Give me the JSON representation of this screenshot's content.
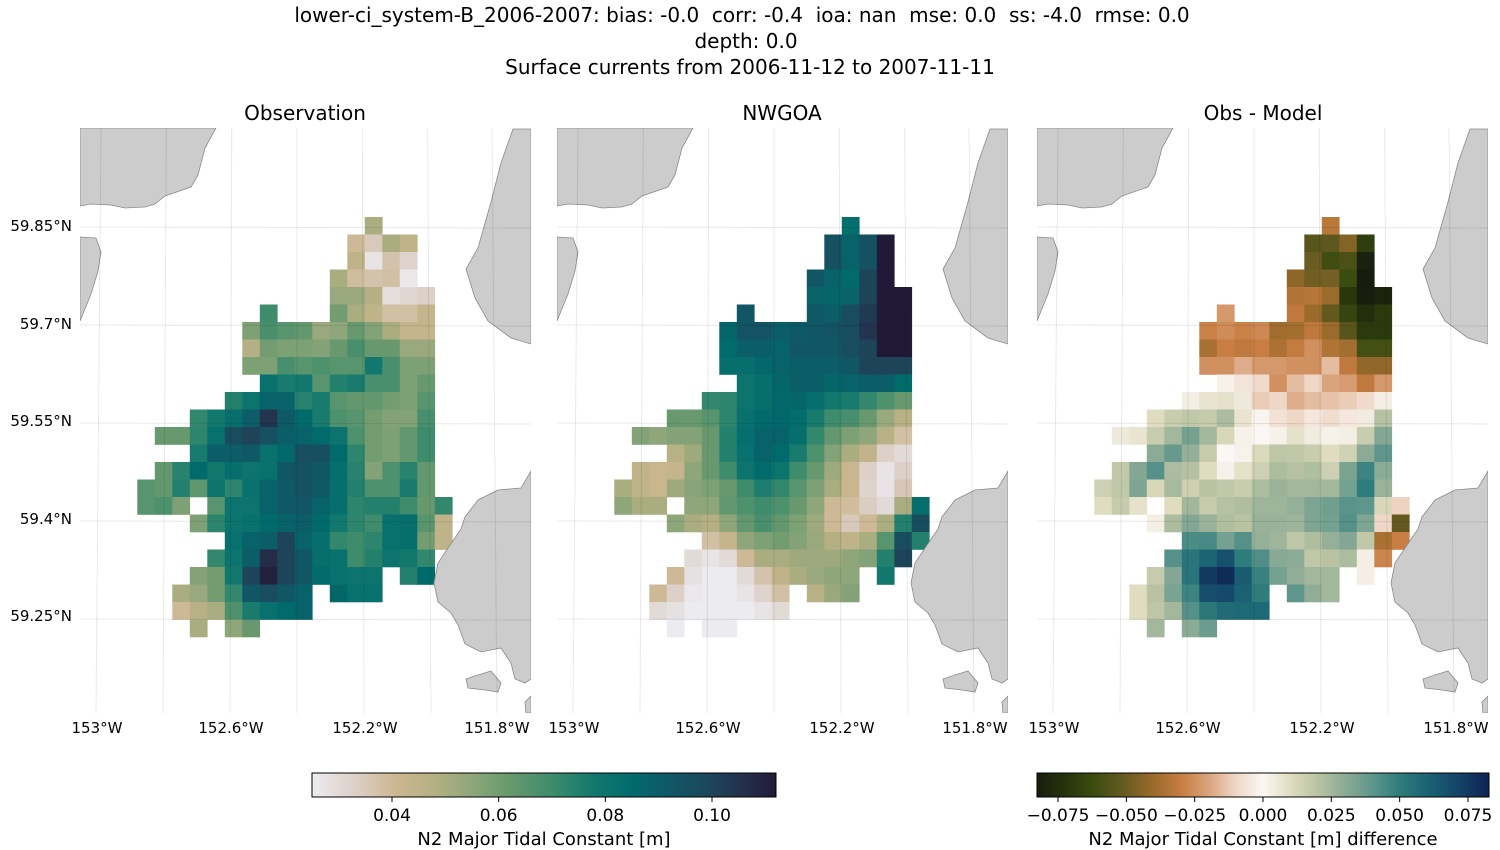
{
  "figure": {
    "suptitle_lines": [
      "lower-ci_system-B_2006-2007: bias: -0.0  corr: -0.4  ioa: nan  mse: 0.0  ss: -4.0  rmse: 0.0",
      "depth: 0.0",
      "Surface currents from 2006-11-12 to 2007-11-11"
    ],
    "land_color": "#cccccc"
  },
  "chart_data": {
    "type": "heatmap",
    "panels": [
      {
        "title": "Observation",
        "field": "obs",
        "colorbar": "values"
      },
      {
        "title": "NWGOA",
        "field": "model",
        "colorbar": "values"
      },
      {
        "title": "Obs - Model",
        "field": "diff",
        "colorbar": "difference"
      }
    ],
    "lat_ticks": [
      "59.85°N",
      "59.7°N",
      "59.55°N",
      "59.4°N",
      "59.25°N"
    ],
    "lon_ticks": [
      "153°W",
      "152.6°W",
      "152.2°W",
      "151.8°W"
    ],
    "grid": true,
    "colorbars": {
      "values": {
        "label": "N2 Major Tidal Constant [m]",
        "range": [
          0.025,
          0.112
        ],
        "ticks": [
          "0.04",
          "0.06",
          "0.08",
          "0.10"
        ],
        "tick_values": [
          0.04,
          0.06,
          0.08,
          0.1
        ],
        "colormap": [
          [
            0.025,
            "#ecebf0"
          ],
          [
            0.033,
            "#dcd0c8"
          ],
          [
            0.041,
            "#ccb690"
          ],
          [
            0.048,
            "#b4b083"
          ],
          [
            0.055,
            "#8ea67a"
          ],
          [
            0.062,
            "#68996e"
          ],
          [
            0.07,
            "#3e8c6c"
          ],
          [
            0.078,
            "#12786e"
          ],
          [
            0.085,
            "#016b6c"
          ],
          [
            0.092,
            "#0f5866"
          ],
          [
            0.1,
            "#1e4459"
          ],
          [
            0.106,
            "#252f4c"
          ],
          [
            0.112,
            "#211a36"
          ]
        ]
      },
      "difference": {
        "label": "N2 Major Tidal Constant [m] difference",
        "range": [
          -0.0827,
          0.0827
        ],
        "ticks": [
          "−0.075",
          "−0.050",
          "−0.025",
          "0.000",
          "0.025",
          "0.050",
          "0.075"
        ],
        "tick_values": [
          -0.075,
          -0.05,
          -0.025,
          0,
          0.025,
          0.05,
          0.075
        ],
        "colormap": [
          [
            -0.083,
            "#171c0e"
          ],
          [
            -0.072,
            "#27350c"
          ],
          [
            -0.062,
            "#3b4c10"
          ],
          [
            -0.05,
            "#6b5c22"
          ],
          [
            -0.04,
            "#9a6b2c"
          ],
          [
            -0.03,
            "#c87d42"
          ],
          [
            -0.02,
            "#d9a37c"
          ],
          [
            -0.01,
            "#eed7c6"
          ],
          [
            0,
            "#fbf7f5"
          ],
          [
            0.01,
            "#e0dcc0"
          ],
          [
            0.02,
            "#b9c3a3"
          ],
          [
            0.03,
            "#8cab96"
          ],
          [
            0.04,
            "#5e968b"
          ],
          [
            0.05,
            "#2f7c7c"
          ],
          [
            0.06,
            "#1a6474"
          ],
          [
            0.07,
            "#16486a"
          ],
          [
            0.083,
            "#0f2254"
          ]
        ]
      }
    },
    "obs": [
      [
        null,
        null,
        null,
        null,
        null,
        null,
        null,
        null,
        null,
        null,
        null,
        null,
        null,
        0.05,
        null,
        null,
        null,
        null
      ],
      [
        null,
        null,
        null,
        null,
        null,
        null,
        null,
        null,
        null,
        null,
        null,
        null,
        0.04,
        0.035,
        0.05,
        0.045,
        null,
        null
      ],
      [
        null,
        null,
        null,
        null,
        null,
        null,
        null,
        null,
        null,
        null,
        null,
        null,
        0.045,
        0.027,
        0.037,
        0.032,
        null,
        null
      ],
      [
        null,
        null,
        null,
        null,
        null,
        null,
        null,
        null,
        null,
        null,
        null,
        0.05,
        0.039,
        0.037,
        0.038,
        0.026,
        null,
        null
      ],
      [
        null,
        null,
        null,
        null,
        null,
        null,
        null,
        null,
        null,
        null,
        null,
        0.053,
        0.053,
        0.048,
        0.029,
        0.031,
        0.033,
        null
      ],
      [
        null,
        null,
        null,
        null,
        null,
        null,
        null,
        0.07,
        null,
        null,
        null,
        0.06,
        0.05,
        0.045,
        0.038,
        0.038,
        0.043,
        null
      ],
      [
        null,
        null,
        null,
        null,
        null,
        null,
        0.058,
        0.068,
        0.065,
        0.063,
        0.053,
        0.055,
        0.062,
        0.057,
        0.05,
        0.043,
        0.043,
        null
      ],
      [
        null,
        null,
        null,
        null,
        null,
        null,
        0.048,
        0.06,
        0.058,
        0.058,
        0.057,
        0.062,
        0.068,
        0.062,
        0.062,
        0.053,
        0.053,
        null
      ],
      [
        null,
        null,
        null,
        null,
        null,
        null,
        0.058,
        0.058,
        0.068,
        0.065,
        0.067,
        0.065,
        0.065,
        0.078,
        0.068,
        0.058,
        0.058,
        null
      ],
      [
        null,
        null,
        null,
        null,
        null,
        null,
        null,
        0.082,
        0.077,
        0.078,
        0.065,
        0.075,
        0.077,
        0.068,
        0.068,
        0.058,
        0.062,
        null
      ],
      [
        null,
        null,
        null,
        null,
        null,
        0.075,
        0.08,
        0.088,
        0.088,
        0.074,
        0.077,
        0.065,
        0.063,
        0.063,
        0.06,
        0.058,
        0.065,
        null
      ],
      [
        null,
        null,
        null,
        0.072,
        0.078,
        0.083,
        0.09,
        0.105,
        0.092,
        0.085,
        0.077,
        0.067,
        0.065,
        0.06,
        0.057,
        0.057,
        0.068,
        null
      ],
      [
        null,
        0.062,
        0.062,
        0.073,
        0.082,
        0.097,
        0.1,
        0.095,
        0.09,
        0.088,
        0.085,
        0.08,
        0.067,
        0.06,
        0.058,
        0.063,
        0.07,
        null
      ],
      [
        null,
        null,
        null,
        0.077,
        0.09,
        0.09,
        0.092,
        0.082,
        0.086,
        0.096,
        0.096,
        0.085,
        0.073,
        0.06,
        0.058,
        0.063,
        0.07,
        null
      ],
      [
        null,
        0.063,
        0.074,
        0.085,
        0.078,
        0.083,
        0.08,
        0.082,
        0.093,
        0.095,
        0.093,
        0.083,
        0.074,
        0.057,
        0.067,
        0.074,
        0.063,
        null
      ],
      [
        0.065,
        0.063,
        0.075,
        0.064,
        0.08,
        0.073,
        0.082,
        0.088,
        0.092,
        0.095,
        0.092,
        0.083,
        0.075,
        0.067,
        0.067,
        0.077,
        0.063,
        null
      ],
      [
        0.065,
        0.067,
        0.058,
        null,
        0.065,
        0.08,
        0.08,
        0.088,
        0.092,
        0.093,
        0.088,
        0.083,
        0.073,
        0.075,
        0.075,
        0.07,
        0.062,
        0.072
      ],
      [
        null,
        null,
        null,
        0.058,
        0.073,
        0.08,
        0.082,
        0.085,
        0.088,
        0.09,
        0.085,
        0.078,
        0.073,
        0.07,
        0.082,
        0.083,
        0.065,
        0.045
      ],
      [
        null,
        null,
        null,
        null,
        null,
        0.082,
        0.088,
        0.09,
        0.1,
        0.088,
        0.083,
        0.072,
        0.07,
        0.073,
        0.082,
        0.083,
        0.06,
        0.045
      ],
      [
        null,
        null,
        null,
        null,
        0.072,
        0.08,
        0.09,
        0.107,
        0.1,
        0.093,
        0.083,
        0.082,
        0.07,
        0.075,
        0.08,
        0.078,
        0.072,
        null
      ],
      [
        null,
        null,
        null,
        0.057,
        0.06,
        0.078,
        0.1,
        0.11,
        0.1,
        0.093,
        0.085,
        0.082,
        0.08,
        0.08,
        null,
        0.075,
        0.085,
        null
      ],
      [
        null,
        null,
        0.05,
        0.053,
        0.06,
        0.072,
        0.093,
        0.097,
        0.093,
        0.088,
        null,
        0.087,
        0.082,
        0.082,
        null,
        null,
        null,
        null
      ],
      [
        null,
        null,
        0.04,
        0.047,
        0.05,
        0.067,
        0.077,
        0.082,
        0.085,
        0.088,
        null,
        null,
        null,
        null,
        null,
        null,
        null,
        null
      ],
      [
        null,
        null,
        null,
        0.05,
        null,
        0.055,
        0.062,
        null,
        null,
        null,
        null,
        null,
        null,
        null,
        null,
        null,
        null,
        null
      ]
    ],
    "model": [
      [
        null,
        null,
        null,
        null,
        null,
        null,
        null,
        null,
        null,
        null,
        null,
        null,
        null,
        0.083,
        null,
        null,
        null,
        null
      ],
      [
        null,
        null,
        null,
        null,
        null,
        null,
        null,
        null,
        null,
        null,
        null,
        null,
        0.095,
        0.088,
        0.095,
        0.113,
        null,
        null
      ],
      [
        null,
        null,
        null,
        null,
        null,
        null,
        null,
        null,
        null,
        null,
        null,
        null,
        0.095,
        0.088,
        0.095,
        0.113,
        null,
        null
      ],
      [
        null,
        null,
        null,
        null,
        null,
        null,
        null,
        null,
        null,
        null,
        null,
        0.093,
        0.088,
        0.085,
        0.1,
        0.113,
        null,
        null
      ],
      [
        null,
        null,
        null,
        null,
        null,
        null,
        null,
        null,
        null,
        null,
        null,
        0.088,
        0.087,
        0.088,
        0.1,
        0.113,
        0.113,
        null
      ],
      [
        null,
        null,
        null,
        null,
        null,
        null,
        null,
        0.093,
        null,
        null,
        null,
        0.092,
        0.09,
        0.097,
        0.103,
        0.113,
        0.113,
        null
      ],
      [
        null,
        null,
        null,
        null,
        null,
        null,
        0.087,
        0.094,
        0.094,
        0.09,
        0.092,
        0.093,
        0.094,
        0.097,
        0.105,
        0.113,
        0.113,
        null
      ],
      [
        null,
        null,
        null,
        null,
        null,
        null,
        0.085,
        0.09,
        0.09,
        0.088,
        0.093,
        0.093,
        0.093,
        0.097,
        0.1,
        0.113,
        0.113,
        null
      ],
      [
        null,
        null,
        null,
        null,
        null,
        null,
        0.083,
        0.083,
        0.086,
        0.088,
        0.09,
        0.09,
        0.09,
        0.093,
        0.1,
        0.1,
        0.1,
        null
      ],
      [
        null,
        null,
        null,
        null,
        null,
        null,
        null,
        0.08,
        0.083,
        0.087,
        0.09,
        0.09,
        0.087,
        0.088,
        0.09,
        0.09,
        0.085,
        null
      ],
      [
        null,
        null,
        null,
        null,
        null,
        0.072,
        0.073,
        0.08,
        0.083,
        0.086,
        0.087,
        0.083,
        0.078,
        0.077,
        0.072,
        0.067,
        0.062,
        null
      ],
      [
        null,
        null,
        null,
        0.062,
        0.062,
        0.065,
        0.073,
        0.082,
        0.085,
        0.086,
        0.084,
        0.077,
        0.07,
        0.068,
        0.062,
        0.053,
        0.047,
        null
      ],
      [
        null,
        0.057,
        0.055,
        0.057,
        0.057,
        0.062,
        0.075,
        0.083,
        0.088,
        0.088,
        0.083,
        0.072,
        0.063,
        0.058,
        0.055,
        0.047,
        0.038,
        null
      ],
      [
        null,
        null,
        null,
        0.047,
        0.052,
        0.062,
        0.075,
        0.082,
        0.088,
        0.085,
        0.077,
        0.067,
        0.057,
        0.05,
        0.044,
        0.033,
        0.03,
        null
      ],
      [
        null,
        0.045,
        0.042,
        0.043,
        0.055,
        0.062,
        0.07,
        0.08,
        0.085,
        0.08,
        0.07,
        0.062,
        0.052,
        0.042,
        0.033,
        0.027,
        0.033,
        null
      ],
      [
        0.05,
        0.045,
        0.042,
        0.052,
        0.056,
        0.058,
        0.062,
        0.07,
        0.076,
        0.072,
        0.065,
        0.058,
        0.05,
        0.042,
        0.032,
        0.027,
        0.036,
        null
      ],
      [
        0.055,
        0.05,
        0.05,
        null,
        0.055,
        0.055,
        0.063,
        0.067,
        0.07,
        0.067,
        0.062,
        0.055,
        0.04,
        0.039,
        0.034,
        0.03,
        0.05,
        0.083
      ],
      [
        null,
        null,
        null,
        0.055,
        0.05,
        0.048,
        0.055,
        0.063,
        0.068,
        0.063,
        0.058,
        0.052,
        0.04,
        0.035,
        0.04,
        0.05,
        0.075,
        0.097
      ],
      [
        null,
        null,
        null,
        null,
        null,
        0.038,
        0.043,
        0.055,
        0.058,
        0.06,
        0.057,
        0.053,
        0.048,
        0.045,
        0.05,
        0.065,
        0.097,
        0.075
      ],
      [
        null,
        null,
        null,
        null,
        0.03,
        0.027,
        0.03,
        0.04,
        0.05,
        0.05,
        0.052,
        0.052,
        0.052,
        0.055,
        0.057,
        0.075,
        0.1,
        null
      ],
      [
        null,
        null,
        null,
        0.04,
        0.028,
        0.025,
        0.025,
        0.03,
        0.037,
        0.045,
        0.05,
        0.053,
        0.055,
        0.055,
        null,
        0.078,
        null,
        null
      ],
      [
        null,
        null,
        0.04,
        0.033,
        0.026,
        0.025,
        0.025,
        0.027,
        0.032,
        0.038,
        null,
        0.047,
        0.053,
        0.057,
        null,
        null,
        null,
        null
      ],
      [
        null,
        null,
        0.03,
        0.028,
        0.025,
        0.025,
        0.025,
        0.025,
        0.027,
        0.03,
        null,
        null,
        null,
        null,
        null,
        null,
        null,
        null
      ],
      [
        null,
        null,
        null,
        0.025,
        null,
        0.025,
        0.025,
        null,
        null,
        null,
        null,
        null,
        null,
        null,
        null,
        null,
        null,
        null
      ]
    ]
  }
}
